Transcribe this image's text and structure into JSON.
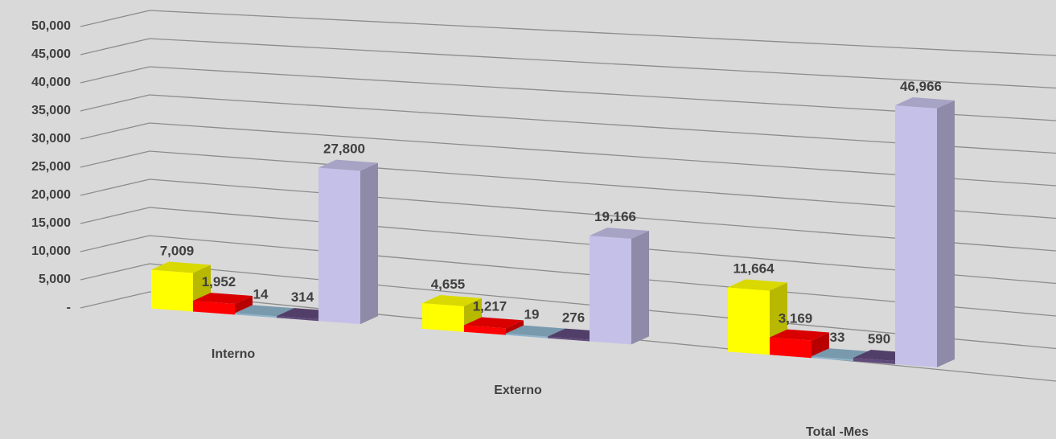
{
  "chart_data": {
    "type": "bar",
    "categories": [
      "Interno",
      "Externo",
      "Total -Mes"
    ],
    "series": [
      {
        "values": [
          7009,
          4655,
          11664
        ],
        "color": "#ffff00"
      },
      {
        "values": [
          1952,
          1217,
          3169
        ],
        "color": "#ff0000"
      },
      {
        "values": [
          14,
          19,
          33
        ],
        "color": "#8eb4cb"
      },
      {
        "values": [
          314,
          276,
          590
        ],
        "color": "#604a7b"
      },
      {
        "values": [
          27800,
          19166,
          46966
        ],
        "color": "#c5c0e8"
      }
    ],
    "data_labels": [
      [
        "7,009",
        "4,655",
        "11,664"
      ],
      [
        "1,952",
        "1,217",
        "3,169"
      ],
      [
        "14",
        "19",
        "33"
      ],
      [
        "314",
        "276",
        "590"
      ],
      [
        "27,800",
        "19,166",
        "46,966"
      ]
    ],
    "y_tick_labels": [
      "-",
      "5,000",
      "10,000",
      "15,000",
      "20,000",
      "25,000",
      "30,000",
      "35,000",
      "40,000",
      "45,000",
      "50,000"
    ],
    "ylim": [
      0,
      50000
    ],
    "grid": true,
    "legend": "none",
    "style": "3d-clustered-column"
  }
}
